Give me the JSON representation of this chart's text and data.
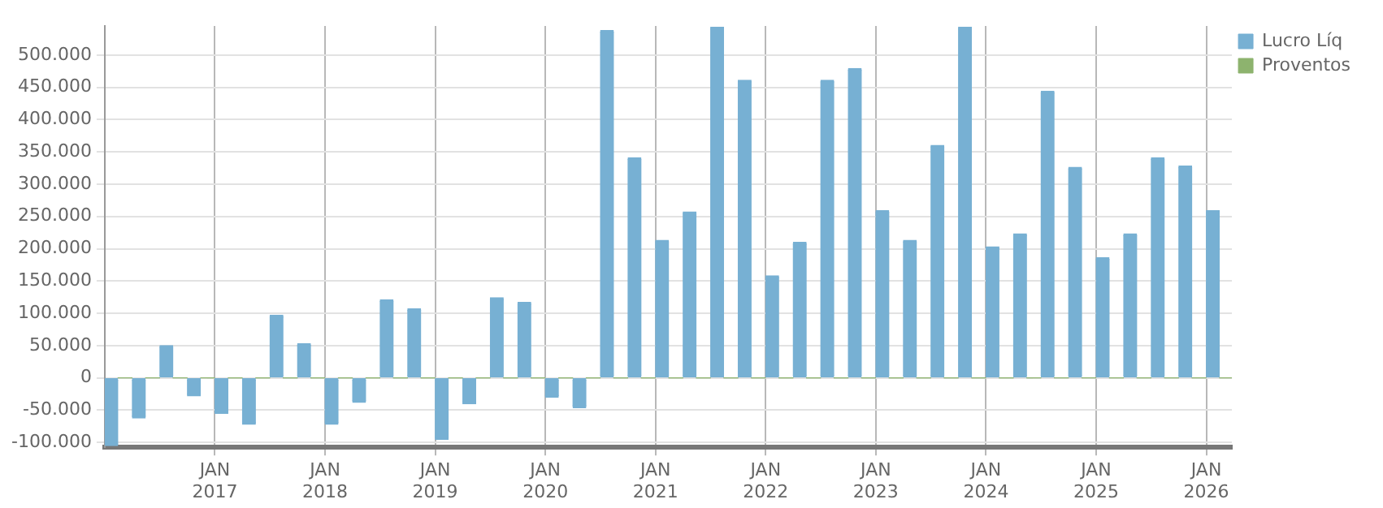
{
  "chart_data": {
    "type": "bar",
    "x": [
      "2016-02-15",
      "2016-05-15",
      "2016-08-15",
      "2016-11-15",
      "2017-02-15",
      "2017-05-15",
      "2017-08-15",
      "2017-11-15",
      "2018-02-15",
      "2018-05-15",
      "2018-08-15",
      "2018-11-15",
      "2019-02-15",
      "2019-05-15",
      "2019-08-15",
      "2019-11-15",
      "2020-02-15",
      "2020-05-15",
      "2020-08-15",
      "2020-11-15",
      "2021-02-15",
      "2021-05-15",
      "2021-08-15",
      "2021-11-15",
      "2022-02-15",
      "2022-05-15",
      "2022-08-15",
      "2022-11-15",
      "2023-02-15",
      "2023-05-15",
      "2023-08-15",
      "2023-11-15",
      "2024-02-15",
      "2024-05-15",
      "2024-08-15",
      "2024-11-15",
      "2025-02-15",
      "2025-05-15",
      "2025-08-15",
      "2025-11-15",
      "2026-02-15"
    ],
    "series": [
      {
        "name": "Lucro Líq",
        "color": "#77b0d3",
        "values": [
          -105000,
          -62000,
          50000,
          -28000,
          -55000,
          -72000,
          97000,
          53000,
          -72000,
          -38000,
          121000,
          107000,
          -95000,
          -40000,
          124000,
          117000,
          -30000,
          -46000,
          538000,
          341000,
          213000,
          257000,
          543000,
          461000,
          158000,
          210000,
          461000,
          479000,
          259000,
          213000,
          360000,
          543000,
          203000,
          223000,
          444000,
          326000,
          186000,
          223000,
          341000,
          328000,
          259000
        ]
      },
      {
        "name": "Proventos",
        "color": "#8db36e",
        "values": [
          0,
          0,
          0,
          0,
          0,
          0,
          0,
          0,
          0,
          0,
          0,
          0,
          0,
          0,
          0,
          0,
          0,
          0,
          0,
          0,
          0,
          0,
          0,
          0,
          0,
          0,
          0,
          0,
          0,
          0,
          0,
          0,
          0,
          0,
          0,
          0,
          0,
          0,
          0,
          0,
          0
        ]
      }
    ],
    "xlim": [
      "2016-01-01",
      "2026-03-25"
    ],
    "xticks": [
      {
        "value": "2017-01-01",
        "label": "JAN 2017"
      },
      {
        "value": "2018-01-01",
        "label": "JAN 2018"
      },
      {
        "value": "2019-01-01",
        "label": "JAN 2019"
      },
      {
        "value": "2020-01-01",
        "label": "JAN 2020"
      },
      {
        "value": "2021-01-01",
        "label": "JAN 2021"
      },
      {
        "value": "2022-01-01",
        "label": "JAN 2022"
      },
      {
        "value": "2023-01-01",
        "label": "JAN 2023"
      },
      {
        "value": "2024-01-01",
        "label": "JAN 2024"
      },
      {
        "value": "2025-01-01",
        "label": "JAN 2025"
      },
      {
        "value": "2026-01-01",
        "label": "JAN 2026"
      }
    ],
    "ylim": [
      -107500,
      545000
    ],
    "yticks": [
      {
        "value": -100000,
        "label": "-100.000"
      },
      {
        "value": -50000,
        "label": "-50.000"
      },
      {
        "value": 0,
        "label": "0"
      },
      {
        "value": 50000,
        "label": "50.000"
      },
      {
        "value": 100000,
        "label": "100.000"
      },
      {
        "value": 150000,
        "label": "150.000"
      },
      {
        "value": 200000,
        "label": "200.000"
      },
      {
        "value": 250000,
        "label": "250.000"
      },
      {
        "value": 300000,
        "label": "300.000"
      },
      {
        "value": 350000,
        "label": "350.000"
      },
      {
        "value": 400000,
        "label": "400.000"
      },
      {
        "value": 450000,
        "label": "450.000"
      },
      {
        "value": 500000,
        "label": "500.000"
      }
    ],
    "grid": true,
    "legend": "top right"
  }
}
